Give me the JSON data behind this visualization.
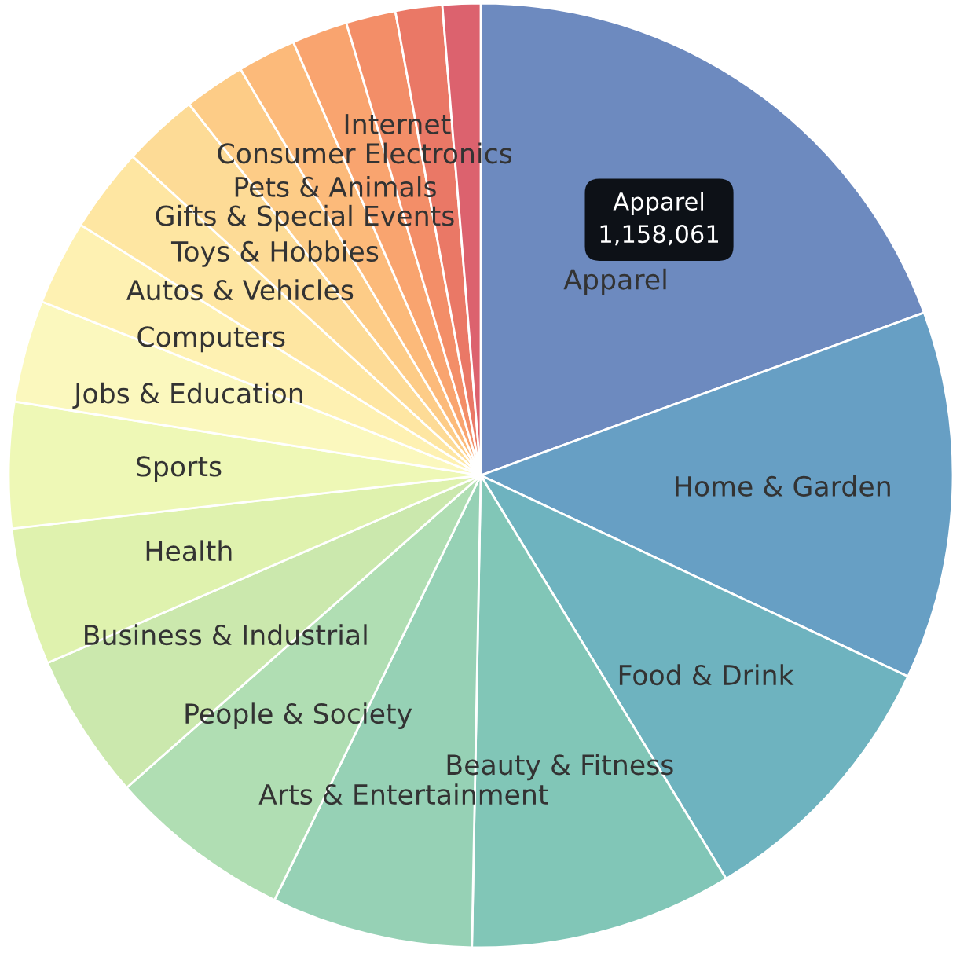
{
  "chart_data": {
    "type": "pie",
    "categories": [
      "Apparel",
      "Home & Garden",
      "Food & Drink",
      "Beauty & Fitness",
      "Arts & Entertainment",
      "People & Society",
      "Business & Industrial",
      "Health",
      "Sports",
      "Jobs & Education",
      "Computers",
      "Autos & Vehicles",
      "Toys & Hobbies",
      "Gifts & Special Events",
      "Pets & Animals",
      "Consumer Electronics",
      "Internet",
      null,
      null
    ],
    "values": [
      19.4,
      12.6,
      9.3,
      9.0,
      6.9,
      6.3,
      5.0,
      4.7,
      4.3,
      3.5,
      2.9,
      2.9,
      2.6,
      2.1,
      2.0,
      1.9,
      1.7,
      1.6,
      1.3
    ],
    "colors": [
      "#6d8abf",
      "#679fc4",
      "#6eb3bf",
      "#81c6b7",
      "#96d1b5",
      "#b0deb3",
      "#cbe8ad",
      "#dff2ae",
      "#eef8b6",
      "#fbf8be",
      "#fef1b2",
      "#fee6a2",
      "#fddb96",
      "#fdcc87",
      "#fcba7a",
      "#f9a46f",
      "#f38e68",
      "#ea7866",
      "#dc626e"
    ],
    "annotations": [
      {
        "text": "Apparel\n1,158,061",
        "x": "Apparel"
      }
    ]
  }
}
